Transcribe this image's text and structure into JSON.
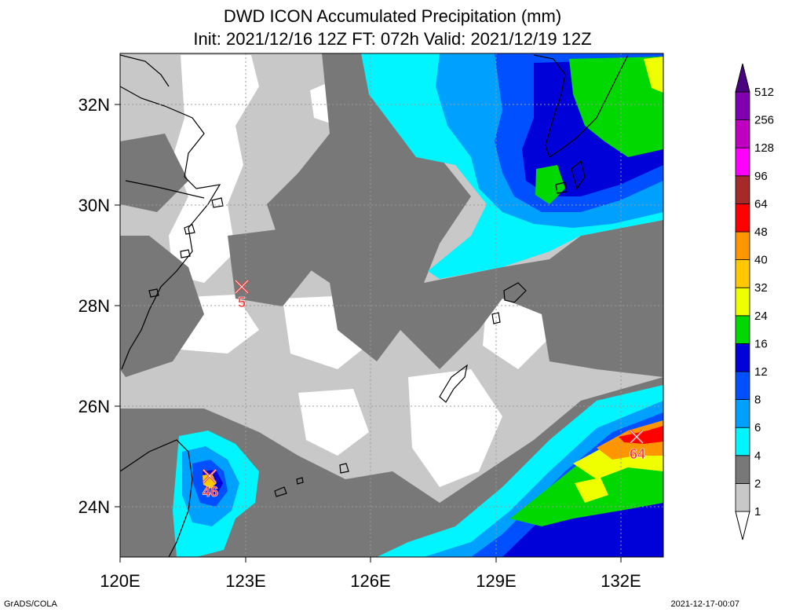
{
  "title": {
    "line1": "DWD ICON Accumulated Precipitation (mm)",
    "line2": "Init: 2021/12/16 12Z  FT: 072h  Valid: 2021/12/19 12Z"
  },
  "map": {
    "lon_range": [
      120,
      133
    ],
    "lat_range": [
      23,
      33
    ],
    "x_ticks": [
      "120E",
      "123E",
      "126E",
      "129E",
      "132E"
    ],
    "y_ticks": [
      "24N",
      "26N",
      "28N",
      "30N",
      "32N"
    ]
  },
  "colorbar": {
    "labels": [
      "1",
      "2",
      "4",
      "6",
      "8",
      "12",
      "16",
      "24",
      "32",
      "40",
      "48",
      "64",
      "96",
      "128",
      "256",
      "512"
    ],
    "colors": [
      "#ffffff",
      "#c8c8c8",
      "#787878",
      "#00f5ff",
      "#00a0ff",
      "#0050ff",
      "#0000d8",
      "#00d800",
      "#f0ff00",
      "#ffc800",
      "#ff9600",
      "#ff0000",
      "#a52a2a",
      "#ff00ff",
      "#c000c0",
      "#8000b0",
      "#4b0082"
    ]
  },
  "markers": [
    {
      "label": "5",
      "lon": 122.9,
      "lat": 28.4
    },
    {
      "label": "46",
      "lon": 122.0,
      "lat": 24.6
    },
    {
      "label": "64",
      "lon": 132.4,
      "lat": 25.4
    }
  ],
  "footer": {
    "left": "GrADS/COLA",
    "right": "2021-12-17-00:07"
  }
}
